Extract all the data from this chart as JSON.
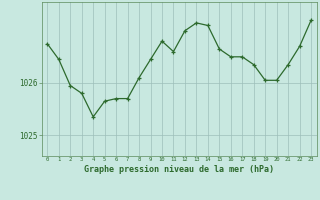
{
  "x": [
    0,
    1,
    2,
    3,
    4,
    5,
    6,
    7,
    8,
    9,
    10,
    11,
    12,
    13,
    14,
    15,
    16,
    17,
    18,
    19,
    20,
    21,
    22,
    23
  ],
  "y": [
    1026.75,
    1026.45,
    1025.95,
    1025.8,
    1025.35,
    1025.65,
    1025.7,
    1025.7,
    1026.1,
    1026.45,
    1026.8,
    1026.6,
    1027.0,
    1027.15,
    1027.1,
    1026.65,
    1026.5,
    1026.5,
    1026.35,
    1026.05,
    1026.05,
    1026.35,
    1026.7,
    1027.2
  ],
  "line_color": "#2d6a2d",
  "marker_color": "#2d6a2d",
  "bg_color": "#c8e8e0",
  "grid_color": "#9dbfba",
  "axis_label_color": "#2d6a2d",
  "tick_color": "#2d6a2d",
  "xlabel": "Graphe pression niveau de la mer (hPa)",
  "ytick_vals": [
    1025,
    1026
  ],
  "ytick_labels": [
    "1025",
    "1026"
  ],
  "ylim": [
    1024.6,
    1027.55
  ],
  "xlim": [
    -0.5,
    23.5
  ],
  "border_color": "#5a8a5a",
  "bottom_bar_color": "#2d6a2d"
}
